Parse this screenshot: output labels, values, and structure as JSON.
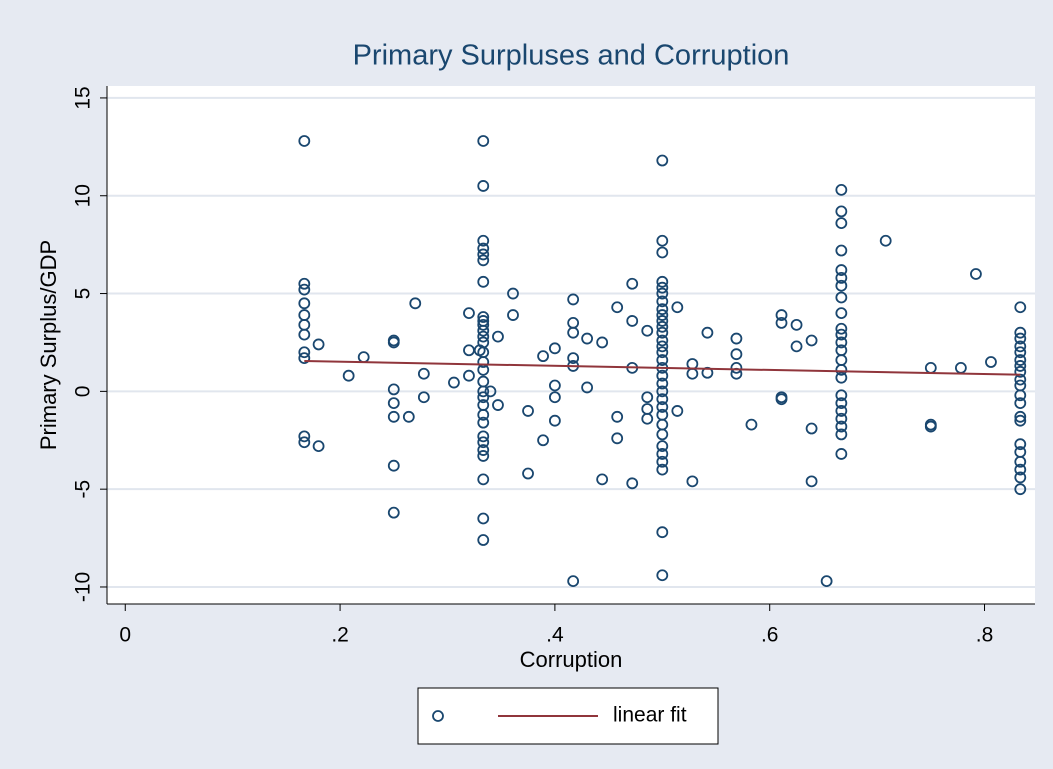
{
  "chart_data": {
    "type": "scatter",
    "title": "Primary Surpluses and Corruption",
    "x_label": "Corruption",
    "y_label": "Primary Surplus/GDP",
    "xlim": [
      -0.017,
      0.847
    ],
    "ylim": [
      -10.87,
      15.61
    ],
    "xticks": [
      0,
      {
        "value": 0.2,
        "label": ".2"
      },
      {
        "value": 0.4,
        "label": ".4"
      },
      {
        "value": 0.6,
        "label": ".6"
      },
      {
        "value": 0.8,
        "label": ".8"
      }
    ],
    "yticks": [
      -10,
      -5,
      0,
      5,
      10,
      15
    ],
    "grid": true,
    "series": [
      {
        "type": "scatter",
        "color": "#1a476f",
        "x": [
          0.1667,
          0.1667,
          0.1667,
          0.1667,
          0.1667,
          0.1667,
          0.1667,
          0.1667,
          0.1667,
          0.1667,
          0.1667,
          0.18,
          0.18,
          0.208,
          0.222,
          0.25,
          0.25,
          0.25,
          0.25,
          0.25,
          0.25,
          0.25,
          0.264,
          0.27,
          0.278,
          0.278,
          0.306,
          0.32,
          0.32,
          0.32,
          0.33,
          0.3333,
          0.3333,
          0.3333,
          0.3333,
          0.3333,
          0.3333,
          0.3333,
          0.3333,
          0.3333,
          0.3333,
          0.3333,
          0.3333,
          0.3333,
          0.3333,
          0.3333,
          0.3333,
          0.3333,
          0.3333,
          0.3333,
          0.3333,
          0.3333,
          0.3333,
          0.3333,
          0.3333,
          0.3333,
          0.3333,
          0.3333,
          0.3333,
          0.3333,
          0.34,
          0.347,
          0.347,
          0.361,
          0.361,
          0.375,
          0.375,
          0.389,
          0.389,
          0.4,
          0.4,
          0.4,
          0.4,
          0.417,
          0.417,
          0.417,
          0.417,
          0.417,
          0.417,
          0.43,
          0.43,
          0.444,
          0.444,
          0.458,
          0.458,
          0.458,
          0.472,
          0.472,
          0.472,
          0.472,
          0.486,
          0.486,
          0.486,
          0.486,
          0.5,
          0.5,
          0.5,
          0.5,
          0.5,
          0.5,
          0.5,
          0.5,
          0.5,
          0.5,
          0.5,
          0.5,
          0.5,
          0.5,
          0.5,
          0.5,
          0.5,
          0.5,
          0.5,
          0.5,
          0.5,
          0.5,
          0.5,
          0.5,
          0.5,
          0.5,
          0.5,
          0.5,
          0.5,
          0.5,
          0.5,
          0.514,
          0.514,
          0.528,
          0.528,
          0.528,
          0.542,
          0.542,
          0.569,
          0.569,
          0.569,
          0.569,
          0.583,
          0.611,
          0.611,
          0.611,
          0.611,
          0.625,
          0.625,
          0.639,
          0.639,
          0.639,
          0.653,
          0.6667,
          0.6667,
          0.6667,
          0.6667,
          0.6667,
          0.6667,
          0.6667,
          0.6667,
          0.6667,
          0.6667,
          0.6667,
          0.6667,
          0.6667,
          0.6667,
          0.6667,
          0.6667,
          0.6667,
          0.6667,
          0.6667,
          0.6667,
          0.6667,
          0.6667,
          0.6667,
          0.708,
          0.75,
          0.75,
          0.75,
          0.778,
          0.792,
          0.806,
          0.8333,
          0.8333,
          0.8333,
          0.8333,
          0.8333,
          0.8333,
          0.8333,
          0.8333,
          0.8333,
          0.8333,
          0.8333,
          0.8333,
          0.8333,
          0.8333,
          0.8333,
          0.8333,
          0.8333,
          0.8333,
          0.8333,
          0.8333
        ],
        "values": [
          12.8,
          5.5,
          5.2,
          4.5,
          3.9,
          3.4,
          2.9,
          2.0,
          1.7,
          -2.3,
          -2.6,
          2.4,
          -2.8,
          0.8,
          1.75,
          2.6,
          2.5,
          0.1,
          -0.6,
          -1.3,
          -3.8,
          -6.2,
          -1.3,
          4.5,
          0.9,
          -0.3,
          0.45,
          4.0,
          2.1,
          0.8,
          2.1,
          12.8,
          10.5,
          7.7,
          7.3,
          7.0,
          6.7,
          5.6,
          3.8,
          3.6,
          3.4,
          3.1,
          2.8,
          2.5,
          2.0,
          1.5,
          1.1,
          0.5,
          0.0,
          -0.3,
          -0.7,
          -1.2,
          -1.6,
          -2.3,
          -2.6,
          -3.0,
          -3.3,
          -4.5,
          -6.5,
          -7.6,
          0.0,
          2.8,
          -0.7,
          5.0,
          3.9,
          -1.0,
          -4.2,
          1.8,
          -2.5,
          2.2,
          0.3,
          -0.3,
          -1.5,
          4.7,
          3.5,
          3.0,
          1.7,
          1.3,
          -9.7,
          2.7,
          0.2,
          2.5,
          -4.5,
          4.3,
          -1.3,
          -2.4,
          5.5,
          3.6,
          1.2,
          -4.7,
          3.1,
          -0.3,
          -0.9,
          -1.4,
          11.8,
          7.7,
          7.1,
          5.6,
          5.3,
          5.0,
          4.6,
          4.2,
          3.9,
          3.6,
          3.3,
          3.0,
          2.6,
          2.3,
          2.0,
          1.6,
          1.2,
          0.8,
          0.4,
          0.0,
          -0.4,
          -0.8,
          -1.2,
          -1.7,
          -2.2,
          -2.8,
          -3.2,
          -3.6,
          -4.0,
          -7.2,
          -9.4,
          4.3,
          -1.0,
          1.4,
          0.9,
          -4.6,
          3.0,
          0.95,
          2.7,
          1.9,
          1.2,
          0.9,
          -1.7,
          3.9,
          3.5,
          -0.3,
          -0.4,
          3.4,
          2.3,
          2.6,
          -1.9,
          -4.6,
          -9.7,
          10.3,
          9.2,
          8.6,
          7.2,
          6.2,
          5.8,
          5.4,
          4.8,
          4.0,
          3.2,
          2.9,
          2.5,
          2.1,
          1.6,
          1.1,
          0.7,
          -0.2,
          -0.6,
          -1.0,
          -1.4,
          -1.8,
          -2.2,
          -3.2,
          7.7,
          1.2,
          -1.7,
          -1.8,
          1.2,
          6.0,
          1.5,
          4.3,
          3.0,
          2.7,
          2.3,
          2.0,
          1.6,
          1.3,
          1.0,
          0.6,
          0.3,
          -0.2,
          -0.6,
          -1.3,
          -1.5,
          -2.7,
          -3.1,
          -3.6,
          -4.0,
          -4.4,
          -5.0
        ]
      },
      {
        "type": "line",
        "name": "linear fit",
        "color": "#90353b",
        "x": [
          0.1667,
          0.8333
        ],
        "values": [
          1.55,
          0.85
        ]
      }
    ]
  }
}
